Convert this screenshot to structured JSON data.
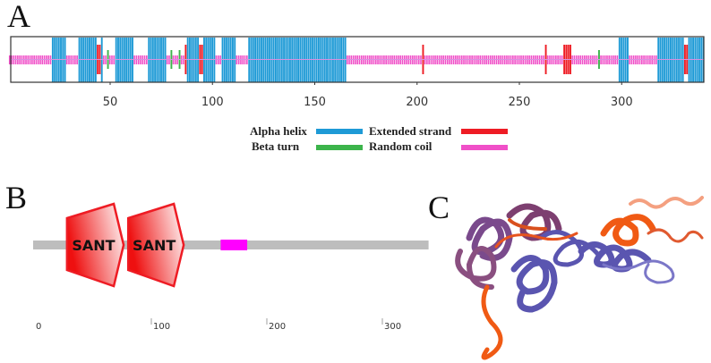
{
  "panels": {
    "a": "A",
    "b": "B",
    "c": "C"
  },
  "chart_data": {
    "type": "sequence-track",
    "sequence_length": 340,
    "xlim": [
      1,
      340
    ],
    "x_ticks": [
      50,
      100,
      150,
      200,
      250,
      300
    ],
    "default_type": "coil",
    "segments": {
      "helix": [
        [
          22,
          28
        ],
        [
          35,
          43
        ],
        [
          46,
          46
        ],
        [
          53,
          61
        ],
        [
          69,
          77
        ],
        [
          88,
          93
        ],
        [
          96,
          101
        ],
        [
          105,
          111
        ],
        [
          118,
          165
        ],
        [
          299,
          303
        ],
        [
          318,
          330
        ],
        [
          333,
          340
        ]
      ],
      "strand": [
        [
          44,
          46
        ],
        [
          87,
          87
        ],
        [
          93,
          95
        ],
        [
          203,
          203
        ],
        [
          263,
          263
        ],
        [
          272,
          275
        ],
        [
          330,
          332
        ]
      ],
      "turn": [
        [
          49,
          49
        ],
        [
          61,
          61
        ],
        [
          80,
          80
        ],
        [
          84,
          84
        ],
        [
          101,
          101
        ],
        [
          289,
          289
        ]
      ]
    },
    "legend": [
      {
        "key": "helix",
        "label": "Alpha helix",
        "color": "#1e9ad6"
      },
      {
        "key": "strand",
        "label": "Extended strand",
        "color": "#ee1c24"
      },
      {
        "key": "turn",
        "label": "Beta turn",
        "color": "#3cb44b"
      },
      {
        "key": "coil",
        "label": "Random coil",
        "color": "#f050c8"
      }
    ],
    "legend_placement": "bottom-center"
  },
  "domain_map": {
    "length": 340,
    "ticks": [
      0,
      100,
      200,
      300
    ],
    "domains": [
      {
        "label": "SANT",
        "start": 27,
        "end": 76,
        "color": "#ee1c24"
      },
      {
        "label": "SANT",
        "start": 80,
        "end": 128,
        "color": "#ee1c24"
      }
    ],
    "regions": [
      {
        "start": 160,
        "end": 183,
        "color": "#ff00ff"
      }
    ],
    "backbone_color": "#bdbdbd"
  },
  "structure_colors": {
    "purple": "#7a4a8c",
    "blue": "#5a55b0",
    "orange": "#f05a14"
  }
}
